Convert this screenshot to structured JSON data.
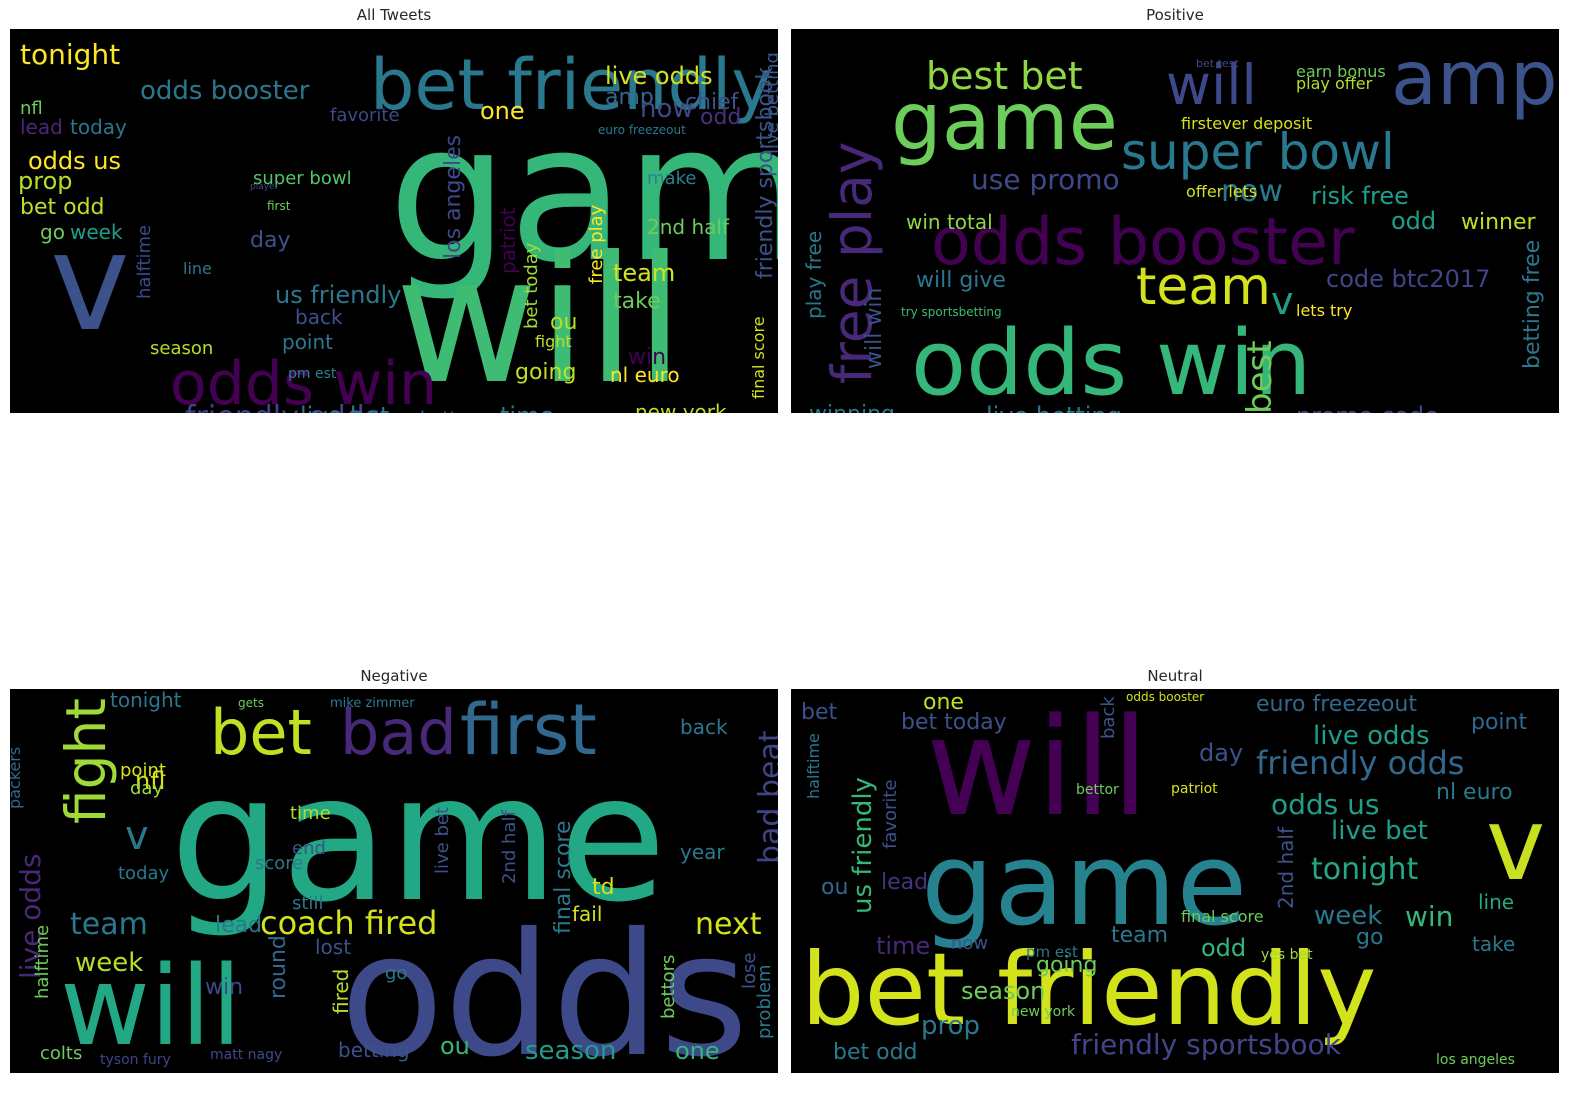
{
  "chart_data": [
    {
      "type": "wordcloud",
      "title": "All Tweets",
      "background": "#000000",
      "colormap": "viridis",
      "words": [
        {
          "text": "game",
          "weight": 1.0
        },
        {
          "text": "will",
          "weight": 0.9
        },
        {
          "text": "v",
          "weight": 0.75
        },
        {
          "text": "bet friendly",
          "weight": 0.5
        },
        {
          "text": "odds win",
          "weight": 0.45
        },
        {
          "text": "friendly odds",
          "weight": 0.25
        },
        {
          "text": "tonight",
          "weight": 0.22
        },
        {
          "text": "live odds",
          "weight": 0.2
        },
        {
          "text": "odds booster",
          "weight": 0.2
        },
        {
          "text": "amp",
          "weight": 0.18
        },
        {
          "text": "chief",
          "weight": 0.15
        },
        {
          "text": "now",
          "weight": 0.18
        },
        {
          "text": "one",
          "weight": 0.18
        },
        {
          "text": "odd",
          "weight": 0.16
        },
        {
          "text": "nfl",
          "weight": 0.15
        },
        {
          "text": "lead",
          "weight": 0.15
        },
        {
          "text": "today",
          "weight": 0.15
        },
        {
          "text": "favorite",
          "weight": 0.13
        },
        {
          "text": "odds us",
          "weight": 0.2
        },
        {
          "text": "prop",
          "weight": 0.2
        },
        {
          "text": "bet odd",
          "weight": 0.2
        },
        {
          "text": "week",
          "weight": 0.18
        },
        {
          "text": "go",
          "weight": 0.16
        },
        {
          "text": "super bowl",
          "weight": 0.15
        },
        {
          "text": "player",
          "weight": 0.1
        },
        {
          "text": "make",
          "weight": 0.14
        },
        {
          "text": "first",
          "weight": 0.11
        },
        {
          "text": "day",
          "weight": 0.17
        },
        {
          "text": "los angeles",
          "weight": 0.17
        },
        {
          "text": "patriot",
          "weight": 0.14
        },
        {
          "text": "bet today",
          "weight": 0.15
        },
        {
          "text": "free play",
          "weight": 0.14
        },
        {
          "text": "2nd half",
          "weight": 0.16
        },
        {
          "text": "live betting",
          "weight": 0.14
        },
        {
          "text": "friendly sportsbook",
          "weight": 0.18
        },
        {
          "text": "us friendly",
          "weight": 0.2
        },
        {
          "text": "halftime",
          "weight": 0.14
        },
        {
          "text": "line",
          "weight": 0.14
        },
        {
          "text": "team",
          "weight": 0.18
        },
        {
          "text": "take",
          "weight": 0.16
        },
        {
          "text": "back",
          "weight": 0.16
        },
        {
          "text": "point",
          "weight": 0.16
        },
        {
          "text": "season",
          "weight": 0.16
        },
        {
          "text": "pm est",
          "weight": 0.13
        },
        {
          "text": "fight",
          "weight": 0.14
        },
        {
          "text": "ou",
          "weight": 0.16
        },
        {
          "text": "win",
          "weight": 0.16
        },
        {
          "text": "final score",
          "weight": 0.14
        },
        {
          "text": "going",
          "weight": 0.16
        },
        {
          "text": "nl euro",
          "weight": 0.16
        },
        {
          "text": "live bet",
          "weight": 0.18
        },
        {
          "text": "bettor",
          "weight": 0.15
        },
        {
          "text": "time",
          "weight": 0.18
        },
        {
          "text": "new york",
          "weight": 0.16
        },
        {
          "text": "euro freezeout",
          "weight": 0.11
        },
        {
          "text": "still",
          "weight": 0.1
        }
      ]
    },
    {
      "type": "wordcloud",
      "title": "Positive",
      "background": "#000000",
      "colormap": "viridis",
      "words": [
        {
          "text": "game",
          "weight": 0.8
        },
        {
          "text": "amp",
          "weight": 0.7
        },
        {
          "text": "will",
          "weight": 0.5
        },
        {
          "text": "best bet",
          "weight": 0.35
        },
        {
          "text": "super bowl",
          "weight": 0.45
        },
        {
          "text": "odds booster",
          "weight": 0.6
        },
        {
          "text": "odds win",
          "weight": 0.85
        },
        {
          "text": "free play",
          "weight": 0.45
        },
        {
          "text": "team",
          "weight": 0.4
        },
        {
          "text": "v",
          "weight": 0.3
        },
        {
          "text": "use promo",
          "weight": 0.22
        },
        {
          "text": "now",
          "weight": 0.28
        },
        {
          "text": "risk free",
          "weight": 0.22
        },
        {
          "text": "winner",
          "weight": 0.2
        },
        {
          "text": "odd",
          "weight": 0.2
        },
        {
          "text": "win total",
          "weight": 0.18
        },
        {
          "text": "will win",
          "weight": 0.25
        },
        {
          "text": "will give",
          "weight": 0.2
        },
        {
          "text": "code btc2017",
          "weight": 0.2
        },
        {
          "text": "lets try",
          "weight": 0.13
        },
        {
          "text": "best",
          "weight": 0.25
        },
        {
          "text": "betting free",
          "weight": 0.18
        },
        {
          "text": "play free",
          "weight": 0.16
        },
        {
          "text": "winning",
          "weight": 0.18
        },
        {
          "text": "live betting",
          "weight": 0.2
        },
        {
          "text": "promo code",
          "weight": 0.22
        },
        {
          "text": "offer lets",
          "weight": 0.14
        },
        {
          "text": "firstever deposit",
          "weight": 0.14
        },
        {
          "text": "earn bonus",
          "weight": 0.13
        },
        {
          "text": "play offer",
          "weight": 0.14
        },
        {
          "text": "bet test",
          "weight": 0.11
        },
        {
          "text": "try sportsbetting",
          "weight": 0.11
        }
      ]
    },
    {
      "type": "wordcloud",
      "title": "Negative",
      "background": "#000000",
      "colormap": "viridis",
      "words": [
        {
          "text": "game",
          "weight": 1.0
        },
        {
          "text": "odds",
          "weight": 0.85
        },
        {
          "text": "will",
          "weight": 0.65
        },
        {
          "text": "first",
          "weight": 0.5
        },
        {
          "text": "bad",
          "weight": 0.45
        },
        {
          "text": "bet",
          "weight": 0.45
        },
        {
          "text": "fight",
          "weight": 0.42
        },
        {
          "text": "bad beat",
          "weight": 0.25
        },
        {
          "text": "coach fired",
          "weight": 0.25
        },
        {
          "text": "next",
          "weight": 0.25
        },
        {
          "text": "team",
          "weight": 0.25
        },
        {
          "text": "week",
          "weight": 0.22
        },
        {
          "text": "v",
          "weight": 0.3
        },
        {
          "text": "nfl",
          "weight": 0.22
        },
        {
          "text": "tonight",
          "weight": 0.18
        },
        {
          "text": "back",
          "weight": 0.18
        },
        {
          "text": "point",
          "weight": 0.16
        },
        {
          "text": "day",
          "weight": 0.16
        },
        {
          "text": "today",
          "weight": 0.16
        },
        {
          "text": "live odds",
          "weight": 0.22
        },
        {
          "text": "packers",
          "weight": 0.16
        },
        {
          "text": "halftime",
          "weight": 0.16
        },
        {
          "text": "colts",
          "weight": 0.16
        },
        {
          "text": "lead",
          "weight": 0.18
        },
        {
          "text": "win",
          "weight": 0.16
        },
        {
          "text": "round",
          "weight": 0.18
        },
        {
          "text": "lost",
          "weight": 0.16
        },
        {
          "text": "go",
          "weight": 0.16
        },
        {
          "text": "score",
          "weight": 0.16
        },
        {
          "text": "end",
          "weight": 0.16
        },
        {
          "text": "time",
          "weight": 0.16
        },
        {
          "text": "fired",
          "weight": 0.16
        },
        {
          "text": "still",
          "weight": 0.14
        },
        {
          "text": "live bet",
          "weight": 0.16
        },
        {
          "text": "2nd half",
          "weight": 0.16
        },
        {
          "text": "final score",
          "weight": 0.18
        },
        {
          "text": "td",
          "weight": 0.16
        },
        {
          "text": "fail",
          "weight": 0.16
        },
        {
          "text": "season",
          "weight": 0.2
        },
        {
          "text": "ou",
          "weight": 0.2
        },
        {
          "text": "one",
          "weight": 0.2
        },
        {
          "text": "betting",
          "weight": 0.16
        },
        {
          "text": "bettors",
          "weight": 0.16
        },
        {
          "text": "problem",
          "weight": 0.16
        },
        {
          "text": "year",
          "weight": 0.16
        },
        {
          "text": "lose",
          "weight": 0.16
        },
        {
          "text": "tyson fury",
          "weight": 0.12
        },
        {
          "text": "matt nagy",
          "weight": 0.12
        },
        {
          "text": "mike zimmer",
          "weight": 0.11
        },
        {
          "text": "gets",
          "weight": 0.11
        }
      ]
    },
    {
      "type": "wordcloud",
      "title": "Neutral",
      "background": "#000000",
      "colormap": "viridis",
      "words": [
        {
          "text": "will",
          "weight": 1.0
        },
        {
          "text": "game",
          "weight": 0.85
        },
        {
          "text": "bet friendly",
          "weight": 0.85
        },
        {
          "text": "v",
          "weight": 0.65
        },
        {
          "text": "friendly odds",
          "weight": 0.28
        },
        {
          "text": "friendly sportsbook",
          "weight": 0.24
        },
        {
          "text": "live odds",
          "weight": 0.22
        },
        {
          "text": "euro freezeout",
          "weight": 0.18
        },
        {
          "text": "point",
          "weight": 0.2
        },
        {
          "text": "nl euro",
          "weight": 0.2
        },
        {
          "text": "odds us",
          "weight": 0.22
        },
        {
          "text": "live bet",
          "weight": 0.22
        },
        {
          "text": "tonight",
          "weight": 0.26
        },
        {
          "text": "week",
          "weight": 0.22
        },
        {
          "text": "win",
          "weight": 0.22
        },
        {
          "text": "go",
          "weight": 0.18
        },
        {
          "text": "take",
          "weight": 0.16
        },
        {
          "text": "line",
          "weight": 0.16
        },
        {
          "text": "odd",
          "weight": 0.2
        },
        {
          "text": "team",
          "weight": 0.2
        },
        {
          "text": "season",
          "weight": 0.2
        },
        {
          "text": "prop",
          "weight": 0.22
        },
        {
          "text": "bet odd",
          "weight": 0.2
        },
        {
          "text": "time",
          "weight": 0.18
        },
        {
          "text": "us friendly",
          "weight": 0.22
        },
        {
          "text": "favorite",
          "weight": 0.16
        },
        {
          "text": "halftime",
          "weight": 0.14
        },
        {
          "text": "lead",
          "weight": 0.18
        },
        {
          "text": "ou",
          "weight": 0.18
        },
        {
          "text": "bet",
          "weight": 0.18
        },
        {
          "text": "bet today",
          "weight": 0.18
        },
        {
          "text": "one",
          "weight": 0.18
        },
        {
          "text": "back",
          "weight": 0.16
        },
        {
          "text": "day",
          "weight": 0.18
        },
        {
          "text": "going",
          "weight": 0.16
        },
        {
          "text": "now",
          "weight": 0.16
        },
        {
          "text": "pm est",
          "weight": 0.14
        },
        {
          "text": "2nd half",
          "weight": 0.16
        },
        {
          "text": "final score",
          "weight": 0.14
        },
        {
          "text": "odds booster",
          "weight": 0.12
        },
        {
          "text": "patriot",
          "weight": 0.13
        },
        {
          "text": "bettor",
          "weight": 0.12
        },
        {
          "text": "los angeles",
          "weight": 0.12
        },
        {
          "text": "new york",
          "weight": 0.13
        },
        {
          "text": "yes bet",
          "weight": 0.12
        }
      ]
    }
  ]
}
